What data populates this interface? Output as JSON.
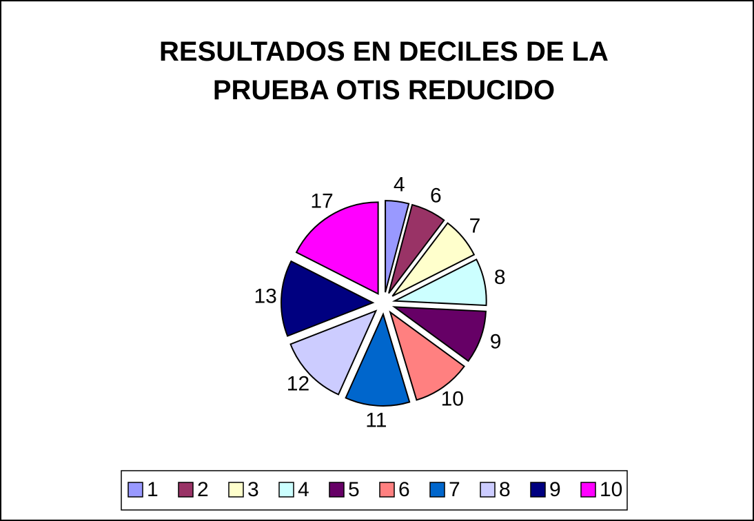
{
  "chart_data": {
    "type": "pie",
    "title": "RESULTADOS EN DECILES DE LA PRUEBA OTIS REDUCIDO",
    "categories": [
      "1",
      "2",
      "3",
      "4",
      "5",
      "6",
      "7",
      "8",
      "9",
      "10"
    ],
    "values": [
      4,
      6,
      7,
      8,
      9,
      10,
      11,
      12,
      13,
      17
    ],
    "colors": [
      "#9999ff",
      "#993366",
      "#ffffcc",
      "#ccffff",
      "#660066",
      "#ff8080",
      "#0066cc",
      "#ccccff",
      "#000080",
      "#ff00ff"
    ],
    "legend": "bottom"
  }
}
